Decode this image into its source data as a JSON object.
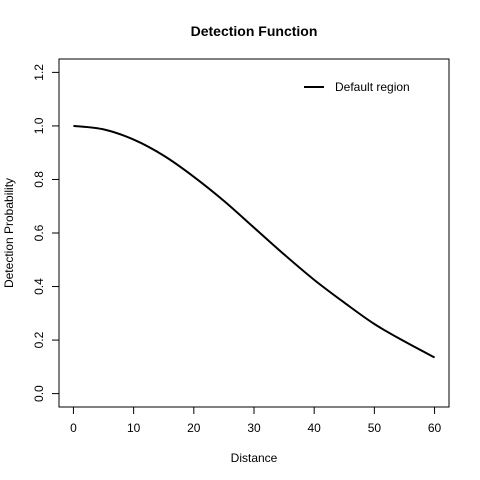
{
  "chart_data": {
    "type": "line",
    "title": "Detection Function",
    "xlabel": "Distance",
    "ylabel": "Detection Probability",
    "xlim": [
      -2.4,
      62.4
    ],
    "ylim": [
      -0.05,
      1.25
    ],
    "x_ticks": [
      "0",
      "10",
      "20",
      "30",
      "40",
      "50",
      "60"
    ],
    "y_ticks": [
      "0.0",
      "0.2",
      "0.4",
      "0.6",
      "0.8",
      "1.0",
      "1.2"
    ],
    "legend_position": "top-right",
    "grid": false,
    "series": [
      {
        "name": "Default region",
        "color": "#000000",
        "x": [
          0,
          5,
          10,
          15,
          20,
          25,
          30,
          35,
          40,
          45,
          50,
          55,
          60
        ],
        "y": [
          1.0,
          0.987,
          0.949,
          0.889,
          0.81,
          0.72,
          0.62,
          0.52,
          0.425,
          0.34,
          0.26,
          0.195,
          0.135
        ]
      }
    ]
  }
}
